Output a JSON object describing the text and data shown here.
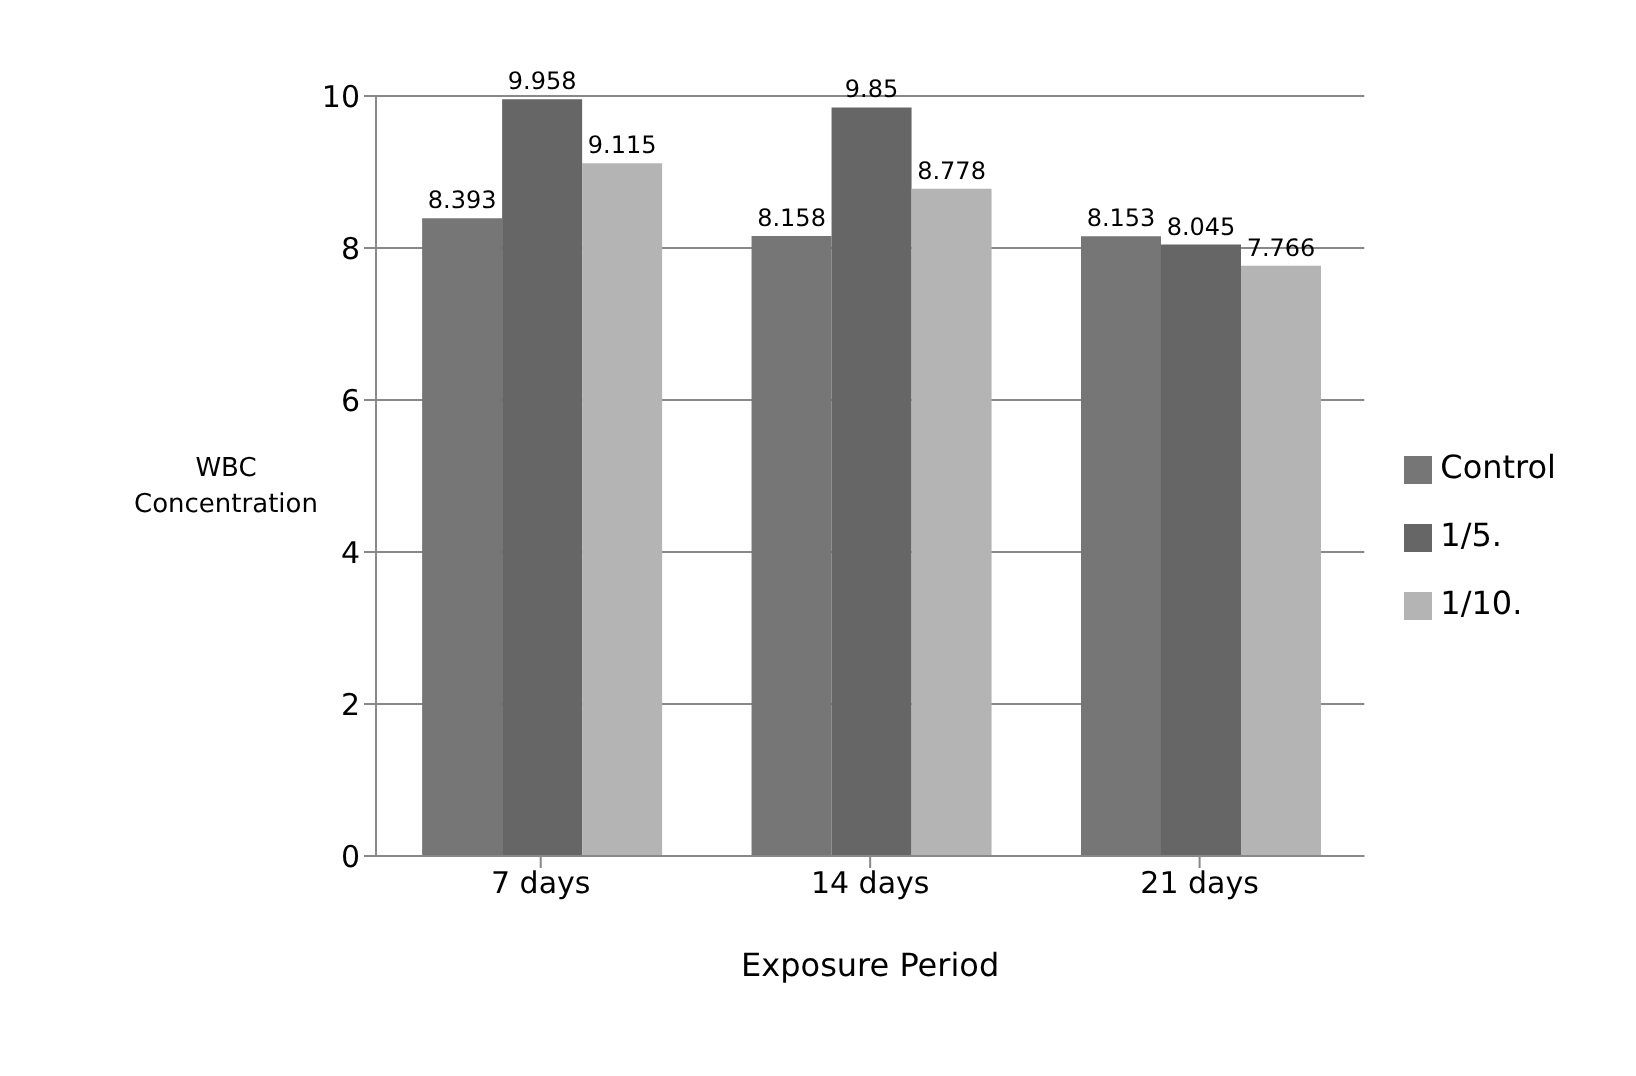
{
  "chart_data": {
    "type": "bar",
    "xlabel": "Exposure Period",
    "ylabel": "WBC Concentration",
    "categories": [
      "7 days",
      "14 days",
      "21 days"
    ],
    "series": [
      {
        "name": "Control",
        "color": "#767676",
        "values": [
          8.393,
          8.158,
          8.153
        ]
      },
      {
        "name": "1/5.",
        "color": "#666666",
        "values": [
          9.958,
          9.85,
          8.045
        ]
      },
      {
        "name": "1/10.",
        "color": "#b4b4b4",
        "values": [
          9.115,
          8.778,
          7.766
        ]
      }
    ],
    "ylim": [
      0,
      10
    ],
    "yticks": [
      0,
      2,
      4,
      6,
      8,
      10
    ],
    "grid": "y",
    "legend": "right",
    "data_labels": true
  }
}
